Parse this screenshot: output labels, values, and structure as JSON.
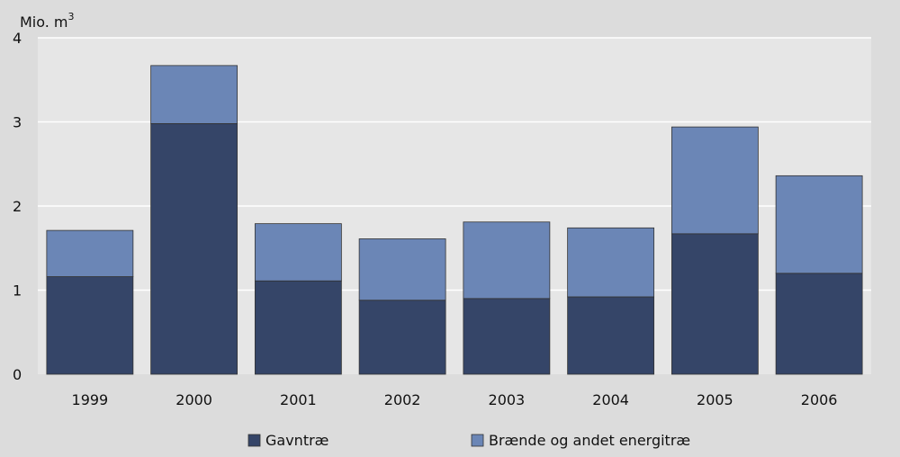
{
  "chart_data": {
    "type": "bar",
    "stacked": true,
    "ylabel": "Mio. m",
    "ylabel_superscript": "3",
    "ylim": [
      0,
      4
    ],
    "yticks": [
      0,
      1,
      2,
      3,
      4
    ],
    "grid": true,
    "legend": "bottom",
    "categories": [
      "1999",
      "2000",
      "2001",
      "2002",
      "2003",
      "2004",
      "2005",
      "2006"
    ],
    "series": [
      {
        "name": "Gavntræ",
        "color": "#354568",
        "values": [
          1.16,
          2.98,
          1.11,
          0.88,
          0.9,
          0.92,
          1.67,
          1.2
        ]
      },
      {
        "name": "Brænde og andet energitræ",
        "color": "#6b86b6",
        "values": [
          0.55,
          0.69,
          0.68,
          0.73,
          0.91,
          0.82,
          1.27,
          1.16
        ]
      }
    ],
    "colors": {
      "background": "#dcdcdc",
      "plot_background": "#e6e6e6",
      "gridline": "#ffffff",
      "bar_outline": "#333333"
    }
  }
}
